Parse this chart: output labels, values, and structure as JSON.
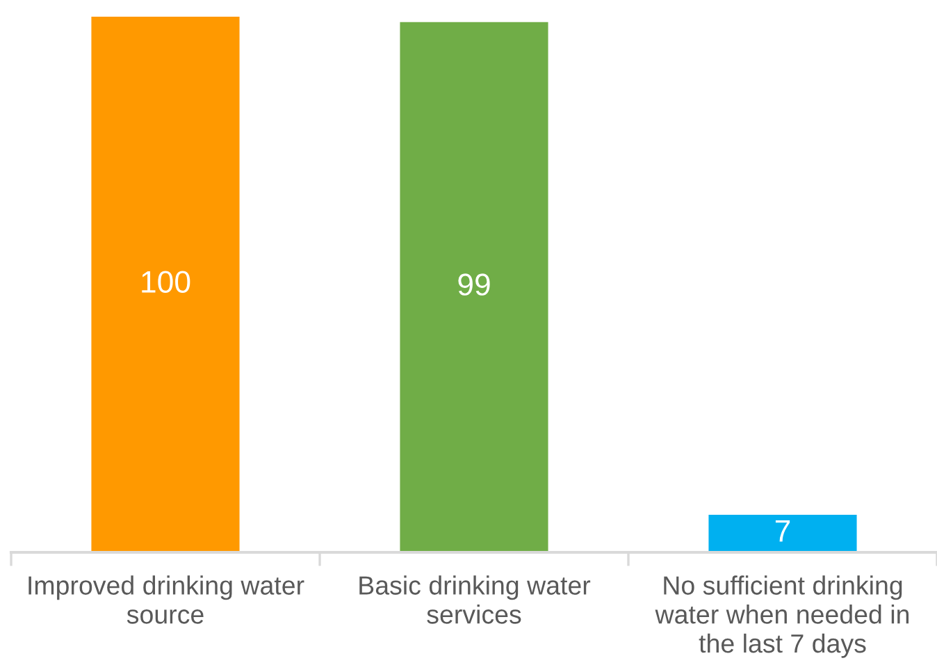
{
  "chart_data": {
    "type": "bar",
    "categories": [
      "Improved drinking water\nsource",
      "Basic drinking water\nservices",
      "No sufficient drinking\nwater when needed in\nthe last 7 days"
    ],
    "values": [
      100,
      99,
      7
    ],
    "colors": [
      "#ff9900",
      "#70ad47",
      "#00b0f0"
    ],
    "data_labels": true,
    "grid": false,
    "legend": false
  }
}
